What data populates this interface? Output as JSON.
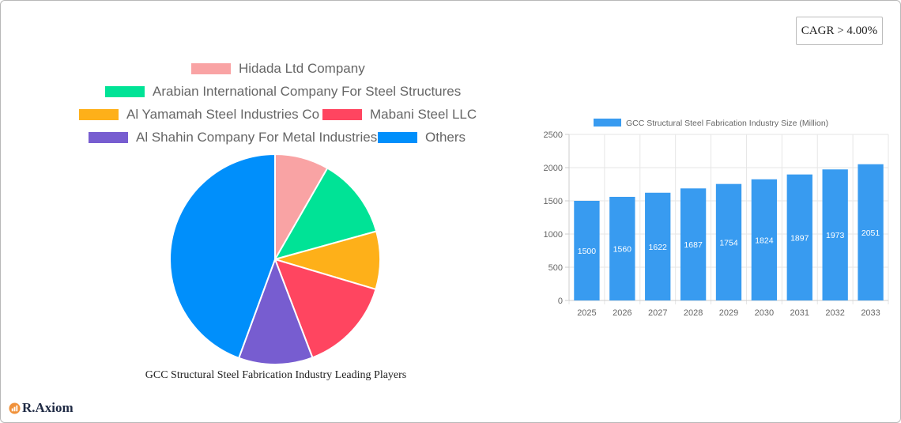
{
  "cagr_badge": "CAGR > 4.00%",
  "logo": {
    "text": "R.Axiom",
    "icon": "chart-logo-icon"
  },
  "pie_title": "GCC Structural Steel Fabrication Industry Leading Players",
  "pie_legend": [
    {
      "label": "Hidada Ltd Company",
      "color": "#f9a3a4"
    },
    {
      "label": "Arabian International Company For Steel Structures",
      "color": "#00e396"
    },
    {
      "label": "Al Yamamah Steel Industries Co",
      "color": "#feb019"
    },
    {
      "label": "Mabani Steel LLC",
      "color": "#ff4560"
    },
    {
      "label": "Al Shahin Company For Metal Industries",
      "color": "#775dd0"
    },
    {
      "label": "Others",
      "color": "#008ffb"
    }
  ],
  "bar_legend": "GCC Structural Steel Fabrication Industry Size (Million)",
  "chart_data": [
    {
      "type": "pie",
      "title": "GCC Structural Steel Fabrication Industry Leading Players",
      "categories": [
        "Hidada Ltd Company",
        "Arabian International Company For Steel Structures",
        "Al Yamamah Steel Industries Co",
        "Mabani Steel LLC",
        "Al Shahin Company For Metal Industries",
        "Others"
      ],
      "values": [
        8.3,
        12.4,
        8.9,
        14.6,
        11.4,
        44.4
      ],
      "colors": [
        "#f9a3a4",
        "#00e396",
        "#feb019",
        "#ff4560",
        "#775dd0",
        "#008ffb"
      ],
      "legend_position": "top"
    },
    {
      "type": "bar",
      "title": "",
      "series": [
        {
          "name": "GCC Structural Steel Fabrication Industry Size (Million)",
          "values": [
            1500,
            1560,
            1622,
            1687,
            1754,
            1824,
            1897,
            1973,
            2051
          ]
        }
      ],
      "categories": [
        "2025",
        "2026",
        "2027",
        "2028",
        "2029",
        "2030",
        "2031",
        "2032",
        "2033"
      ],
      "xlabel": "",
      "ylabel": "",
      "ylim": [
        0,
        2500
      ],
      "yticks": [
        0,
        500,
        1000,
        1500,
        2000,
        2500
      ],
      "grid": true,
      "legend_position": "top",
      "color": "#389bf0"
    }
  ]
}
